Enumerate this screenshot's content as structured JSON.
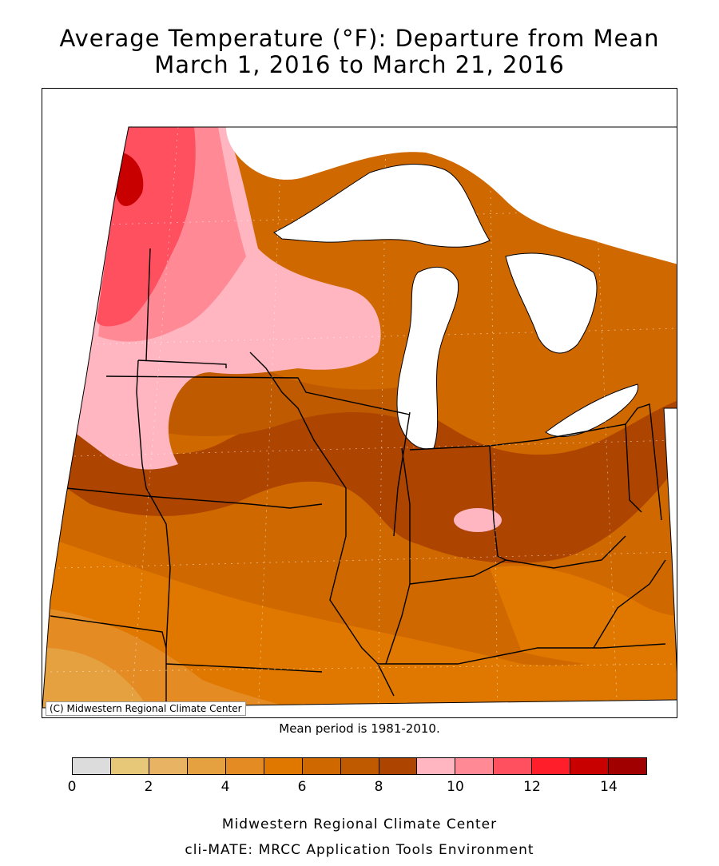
{
  "title_line1": "Average Temperature (°F): Departure from Mean",
  "title_line2": "March 1, 2016 to March 21, 2016",
  "copyright": "(C) Midwestern Regional Climate Center",
  "mean_note": "Mean period is 1981-2010.",
  "legend": {
    "colors": [
      "#dcdcdc",
      "#e6c878",
      "#e8b464",
      "#e5a040",
      "#e48b24",
      "#e07800",
      "#d06800",
      "#c05a00",
      "#ad4400",
      "#ffb6c1",
      "#ff8a96",
      "#ff5060",
      "#ff1e2a",
      "#c80000",
      "#a00000"
    ],
    "tick_values": [
      "0",
      "2",
      "4",
      "6",
      "8",
      "10",
      "12",
      "14"
    ],
    "min": 0,
    "max": 15
  },
  "footer_line1": "Midwestern Regional Climate Center",
  "footer_line2": "cli-MATE: MRCC Application Tools Environment"
}
